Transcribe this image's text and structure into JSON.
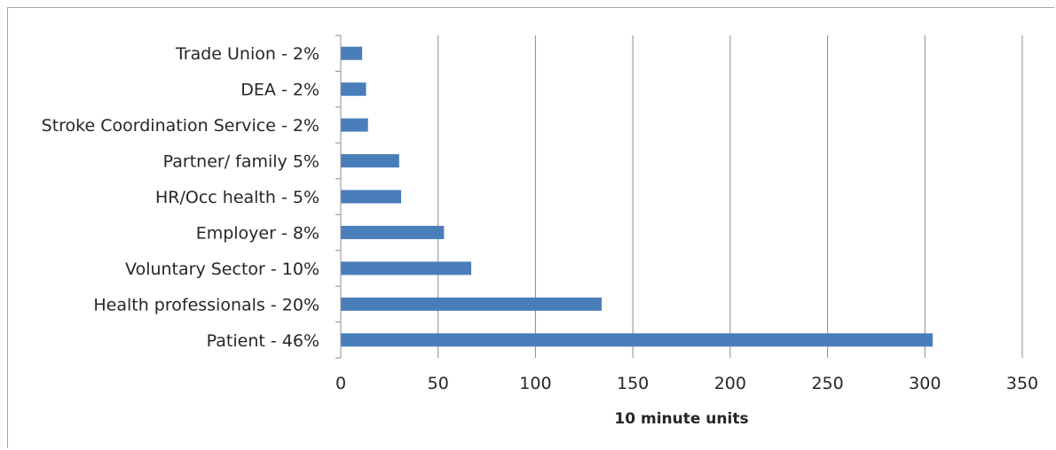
{
  "chart_data": {
    "type": "bar",
    "orientation": "horizontal",
    "categories": [
      "Trade Union - 2%",
      "DEA - 2%",
      "Stroke Coordination Service - 2%",
      "Partner/ family  5%",
      "HR/Occ health - 5%",
      "Employer - 8%",
      "Voluntary Sector - 10%",
      "Health professionals - 20%",
      "Patient - 46%"
    ],
    "values": [
      11,
      13,
      14,
      30,
      31,
      53,
      67,
      134,
      304
    ],
    "xlabel": "10 minute units",
    "xlim": [
      0,
      350
    ],
    "xticks": [
      "0",
      "50",
      "100",
      "150",
      "200",
      "250",
      "300",
      "350"
    ],
    "grid": "vertical",
    "legend": "none",
    "bar_color": "#4a7ebb",
    "grid_color": "#8c8c8c"
  }
}
